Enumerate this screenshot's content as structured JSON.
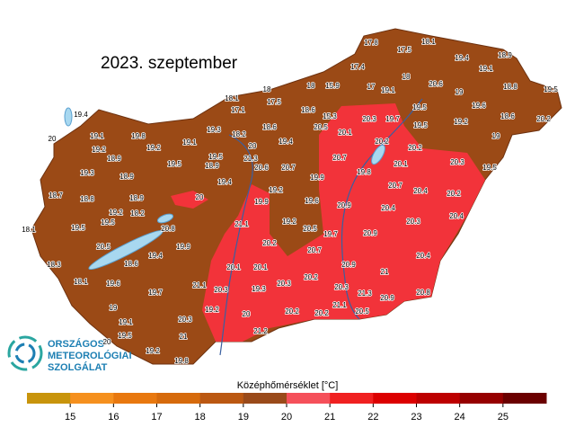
{
  "title": "2023. szeptember",
  "logo": [
    "ORSZÁGOS",
    "METEOROLÓGIAI",
    "SZOLGÁLAT"
  ],
  "legend": {
    "title": "Középhőmérséklet [°C]",
    "range": [
      14,
      26
    ],
    "ticks": [
      15,
      16,
      17,
      18,
      19,
      20,
      21,
      22,
      23,
      24,
      25
    ],
    "colors": [
      "#c8940c",
      "#f5901e",
      "#e8780f",
      "#d66a0c",
      "#bb5812",
      "#9a4a1a",
      "#f5505a",
      "#f02020",
      "#dc0000",
      "#bd0000",
      "#960000",
      "#6b0000"
    ]
  },
  "station_values": [
    17.8,
    17.5,
    18.1,
    19.4,
    18.9,
    17.4,
    15.9,
    17,
    19.1,
    18,
    20.6,
    19.1,
    19,
    18.8,
    19.5,
    18.1,
    18,
    18,
    17.1,
    17.5,
    18.6,
    15.3,
    20.3,
    19.7,
    19.5,
    19.6,
    19.5,
    19.2,
    18.6,
    20.2,
    19.4,
    20,
    19.1,
    19.8,
    19.1,
    19.3,
    18.2,
    18.6,
    20.5,
    20.1,
    20.2,
    20,
    19.4,
    20.2,
    19,
    19.2,
    18.9,
    19.2,
    21.3,
    19.5,
    20.7,
    20.6,
    20.7,
    19.8,
    20.1,
    19.3,
    18.9,
    19.5,
    18.9,
    20.3,
    19.5,
    19.9,
    19.4,
    19.2,
    20.7,
    20.4,
    20.2,
    18.7,
    18.8,
    18.9,
    20,
    19.9,
    19.6,
    20.9,
    20.4,
    20.3,
    20.4,
    19.2,
    18.2,
    19.5,
    21.1,
    19.2,
    20.5,
    19.7,
    20.9,
    18.1,
    19.5,
    20.8,
    20.2,
    19.9,
    20.7,
    20.4,
    20.5,
    19.4,
    18.3,
    18.6,
    20.1,
    20.1,
    20.9,
    21,
    18.1,
    19.6,
    21.1,
    20.3,
    20.2,
    19.7,
    20.3,
    19.3,
    20.3,
    21.3,
    20.8,
    20.9,
    19,
    19.2,
    21.1,
    20.2,
    20.2,
    20.5,
    20.3,
    19.1,
    20,
    21.2,
    21,
    19.5,
    20,
    19.2,
    19.8
  ]
}
